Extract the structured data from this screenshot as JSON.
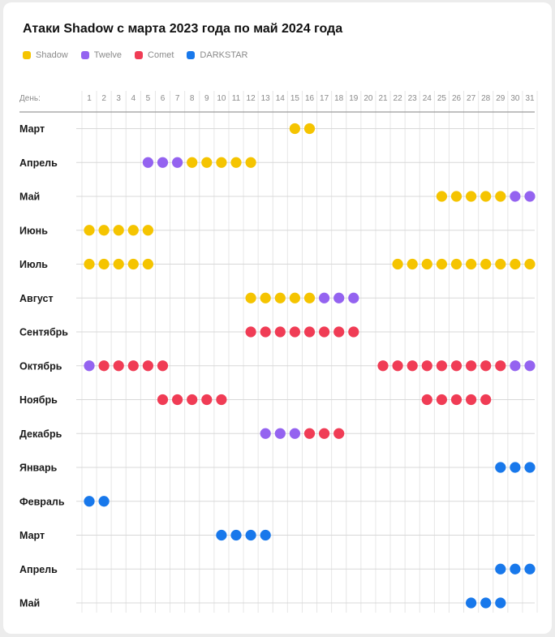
{
  "chart_data": {
    "type": "scatter",
    "title": "Атаки Shadow с марта 2023 года по май 2024 года",
    "xlabel": "День:",
    "days": [
      1,
      2,
      3,
      4,
      5,
      6,
      7,
      8,
      9,
      10,
      11,
      12,
      13,
      14,
      15,
      16,
      17,
      18,
      19,
      20,
      21,
      22,
      23,
      24,
      25,
      26,
      27,
      28,
      29,
      30,
      31
    ],
    "months": [
      "Март",
      "Апрель",
      "Май",
      "Июнь",
      "Июль",
      "Август",
      "Сентябрь",
      "Октябрь",
      "Ноябрь",
      "Декабрь",
      "Январь",
      "Февраль",
      "Март",
      "Апрель",
      "Май"
    ],
    "series": [
      {
        "name": "Shadow",
        "color": "#f5c400",
        "points": [
          [
            0,
            15
          ],
          [
            0,
            16
          ],
          [
            1,
            8
          ],
          [
            1,
            9
          ],
          [
            1,
            10
          ],
          [
            1,
            11
          ],
          [
            1,
            12
          ],
          [
            2,
            25
          ],
          [
            2,
            26
          ],
          [
            2,
            27
          ],
          [
            2,
            28
          ],
          [
            2,
            29
          ],
          [
            3,
            1
          ],
          [
            3,
            2
          ],
          [
            3,
            3
          ],
          [
            3,
            4
          ],
          [
            3,
            5
          ],
          [
            4,
            1
          ],
          [
            4,
            2
          ],
          [
            4,
            3
          ],
          [
            4,
            4
          ],
          [
            4,
            5
          ],
          [
            4,
            22
          ],
          [
            4,
            23
          ],
          [
            4,
            24
          ],
          [
            4,
            25
          ],
          [
            4,
            26
          ],
          [
            4,
            27
          ],
          [
            4,
            28
          ],
          [
            4,
            29
          ],
          [
            4,
            30
          ],
          [
            4,
            31
          ],
          [
            5,
            12
          ],
          [
            5,
            13
          ],
          [
            5,
            14
          ],
          [
            5,
            15
          ],
          [
            5,
            16
          ]
        ]
      },
      {
        "name": "Twelve",
        "color": "#9463f0",
        "points": [
          [
            1,
            5
          ],
          [
            1,
            6
          ],
          [
            1,
            7
          ],
          [
            2,
            30
          ],
          [
            2,
            31
          ],
          [
            5,
            17
          ],
          [
            5,
            18
          ],
          [
            5,
            19
          ],
          [
            7,
            1
          ],
          [
            7,
            30
          ],
          [
            7,
            31
          ],
          [
            9,
            13
          ],
          [
            9,
            14
          ],
          [
            9,
            15
          ]
        ]
      },
      {
        "name": "Comet",
        "color": "#f03c55",
        "points": [
          [
            6,
            12
          ],
          [
            6,
            13
          ],
          [
            6,
            14
          ],
          [
            6,
            15
          ],
          [
            6,
            16
          ],
          [
            6,
            17
          ],
          [
            6,
            18
          ],
          [
            6,
            19
          ],
          [
            7,
            2
          ],
          [
            7,
            3
          ],
          [
            7,
            4
          ],
          [
            7,
            5
          ],
          [
            7,
            6
          ],
          [
            7,
            21
          ],
          [
            7,
            22
          ],
          [
            7,
            23
          ],
          [
            7,
            24
          ],
          [
            7,
            25
          ],
          [
            7,
            26
          ],
          [
            7,
            27
          ],
          [
            7,
            28
          ],
          [
            7,
            29
          ],
          [
            8,
            6
          ],
          [
            8,
            7
          ],
          [
            8,
            8
          ],
          [
            8,
            9
          ],
          [
            8,
            10
          ],
          [
            8,
            24
          ],
          [
            8,
            25
          ],
          [
            8,
            26
          ],
          [
            8,
            27
          ],
          [
            8,
            28
          ],
          [
            9,
            16
          ],
          [
            9,
            17
          ],
          [
            9,
            18
          ]
        ]
      },
      {
        "name": "DARKSTAR",
        "color": "#1878eb",
        "points": [
          [
            10,
            29
          ],
          [
            10,
            30
          ],
          [
            10,
            31
          ],
          [
            11,
            1
          ],
          [
            11,
            2
          ],
          [
            12,
            10
          ],
          [
            12,
            11
          ],
          [
            12,
            12
          ],
          [
            12,
            13
          ],
          [
            13,
            29
          ],
          [
            13,
            30
          ],
          [
            13,
            31
          ],
          [
            14,
            27
          ],
          [
            14,
            28
          ],
          [
            14,
            29
          ]
        ]
      }
    ],
    "grid": true,
    "legend_position": "top-left"
  }
}
